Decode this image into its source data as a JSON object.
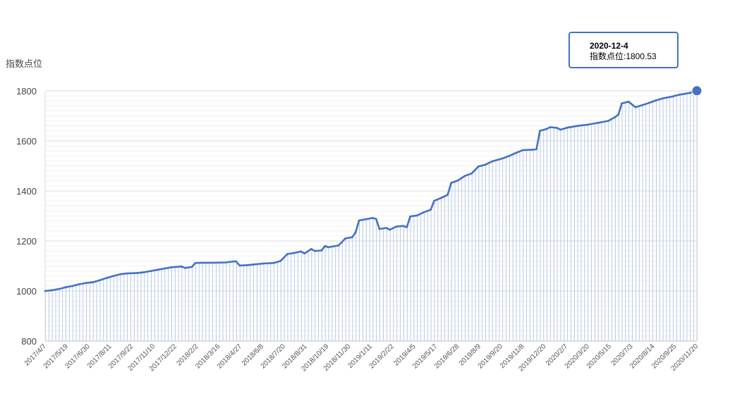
{
  "chart_data": {
    "type": "area",
    "ylabel": "指数点位",
    "ylim": [
      800,
      1800
    ],
    "yticks": [
      800,
      1000,
      1200,
      1400,
      1600,
      1800
    ],
    "xtick_labels": [
      "2017/4/7",
      "2017/5/19",
      "2017/6/30",
      "2017/8/11",
      "2017/9/22",
      "2017/11/10",
      "2017/12/22",
      "2018/2/2",
      "2018/3/16",
      "2018/4/27",
      "2018/6/8",
      "2018/7/20",
      "2018/8/31",
      "2018/10/19",
      "2018/11/30",
      "2019/1/11",
      "2019/2/22",
      "2019/4/5",
      "2019/5/17",
      "2019/6/28",
      "2019/8/9",
      "2019/9/20",
      "2019/11/8",
      "2019/12/20",
      "2020/2/7",
      "2020/3/20",
      "2020/5/15",
      "2020/7/3",
      "2020/8/14",
      "2020/9/25",
      "2020/11/20"
    ],
    "grid": true,
    "x_start": "2017-04-07",
    "x_end": "2020-12-04",
    "series": [
      {
        "color": "#4472c4",
        "points": [
          [
            "2017-04-07",
            1000
          ],
          [
            "2017-04-21",
            1003
          ],
          [
            "2017-05-05",
            1008
          ],
          [
            "2017-05-19",
            1015
          ],
          [
            "2017-06-02",
            1020
          ],
          [
            "2017-06-16",
            1027
          ],
          [
            "2017-06-30",
            1032
          ],
          [
            "2017-07-14",
            1035
          ],
          [
            "2017-07-28",
            1043
          ],
          [
            "2017-08-11",
            1052
          ],
          [
            "2017-08-25",
            1060
          ],
          [
            "2017-09-08",
            1067
          ],
          [
            "2017-09-22",
            1070
          ],
          [
            "2017-10-13",
            1072
          ],
          [
            "2017-10-27",
            1075
          ],
          [
            "2017-11-10",
            1080
          ],
          [
            "2017-11-24",
            1085
          ],
          [
            "2017-12-08",
            1090
          ],
          [
            "2017-12-22",
            1095
          ],
          [
            "2018-01-12",
            1098
          ],
          [
            "2018-01-19",
            1092
          ],
          [
            "2018-02-02",
            1096
          ],
          [
            "2018-02-09",
            1112
          ],
          [
            "2018-02-23",
            1113
          ],
          [
            "2018-03-16",
            1113
          ],
          [
            "2018-04-13",
            1114
          ],
          [
            "2018-04-27",
            1118
          ],
          [
            "2018-05-04",
            1118
          ],
          [
            "2018-05-11",
            1102
          ],
          [
            "2018-05-25",
            1103
          ],
          [
            "2018-06-08",
            1106
          ],
          [
            "2018-06-29",
            1110
          ],
          [
            "2018-07-20",
            1112
          ],
          [
            "2018-08-03",
            1120
          ],
          [
            "2018-08-17",
            1148
          ],
          [
            "2018-08-31",
            1152
          ],
          [
            "2018-09-14",
            1158
          ],
          [
            "2018-09-21",
            1150
          ],
          [
            "2018-10-05",
            1168
          ],
          [
            "2018-10-12",
            1160
          ],
          [
            "2018-10-26",
            1162
          ],
          [
            "2018-11-02",
            1180
          ],
          [
            "2018-11-09",
            1175
          ],
          [
            "2018-11-30",
            1182
          ],
          [
            "2018-12-14",
            1210
          ],
          [
            "2018-12-28",
            1215
          ],
          [
            "2019-01-04",
            1235
          ],
          [
            "2019-01-11",
            1282
          ],
          [
            "2019-02-08",
            1292
          ],
          [
            "2019-02-15",
            1288
          ],
          [
            "2019-02-22",
            1248
          ],
          [
            "2019-03-08",
            1252
          ],
          [
            "2019-03-15",
            1245
          ],
          [
            "2019-03-29",
            1258
          ],
          [
            "2019-04-12",
            1260
          ],
          [
            "2019-04-19",
            1255
          ],
          [
            "2019-04-26",
            1298
          ],
          [
            "2019-05-10",
            1302
          ],
          [
            "2019-05-24",
            1315
          ],
          [
            "2019-06-07",
            1325
          ],
          [
            "2019-06-14",
            1360
          ],
          [
            "2019-06-28",
            1372
          ],
          [
            "2019-07-05",
            1378
          ],
          [
            "2019-07-12",
            1385
          ],
          [
            "2019-07-19",
            1432
          ],
          [
            "2019-08-02",
            1442
          ],
          [
            "2019-08-16",
            1460
          ],
          [
            "2019-08-30",
            1470
          ],
          [
            "2019-09-13",
            1498
          ],
          [
            "2019-09-27",
            1505
          ],
          [
            "2019-10-11",
            1518
          ],
          [
            "2019-11-01",
            1530
          ],
          [
            "2019-11-15",
            1540
          ],
          [
            "2019-11-29",
            1552
          ],
          [
            "2019-12-13",
            1563
          ],
          [
            "2020-01-03",
            1565
          ],
          [
            "2020-01-10",
            1567
          ],
          [
            "2020-01-17",
            1640
          ],
          [
            "2020-01-31",
            1648
          ],
          [
            "2020-02-07",
            1655
          ],
          [
            "2020-02-21",
            1652
          ],
          [
            "2020-02-28",
            1645
          ],
          [
            "2020-03-13",
            1653
          ],
          [
            "2020-04-03",
            1660
          ],
          [
            "2020-04-24",
            1665
          ],
          [
            "2020-05-15",
            1672
          ],
          [
            "2020-06-05",
            1680
          ],
          [
            "2020-06-19",
            1695
          ],
          [
            "2020-06-26",
            1705
          ],
          [
            "2020-07-03",
            1750
          ],
          [
            "2020-07-17",
            1757
          ],
          [
            "2020-07-31",
            1735
          ],
          [
            "2020-08-14",
            1743
          ],
          [
            "2020-08-28",
            1752
          ],
          [
            "2020-09-11",
            1762
          ],
          [
            "2020-09-25",
            1770
          ],
          [
            "2020-10-16",
            1778
          ],
          [
            "2020-10-30",
            1785
          ],
          [
            "2020-11-20",
            1792
          ],
          [
            "2020-12-04",
            1800.53
          ]
        ]
      }
    ],
    "tooltip": {
      "date": "2020-12-4",
      "label": "指数点位:1800.53"
    }
  }
}
